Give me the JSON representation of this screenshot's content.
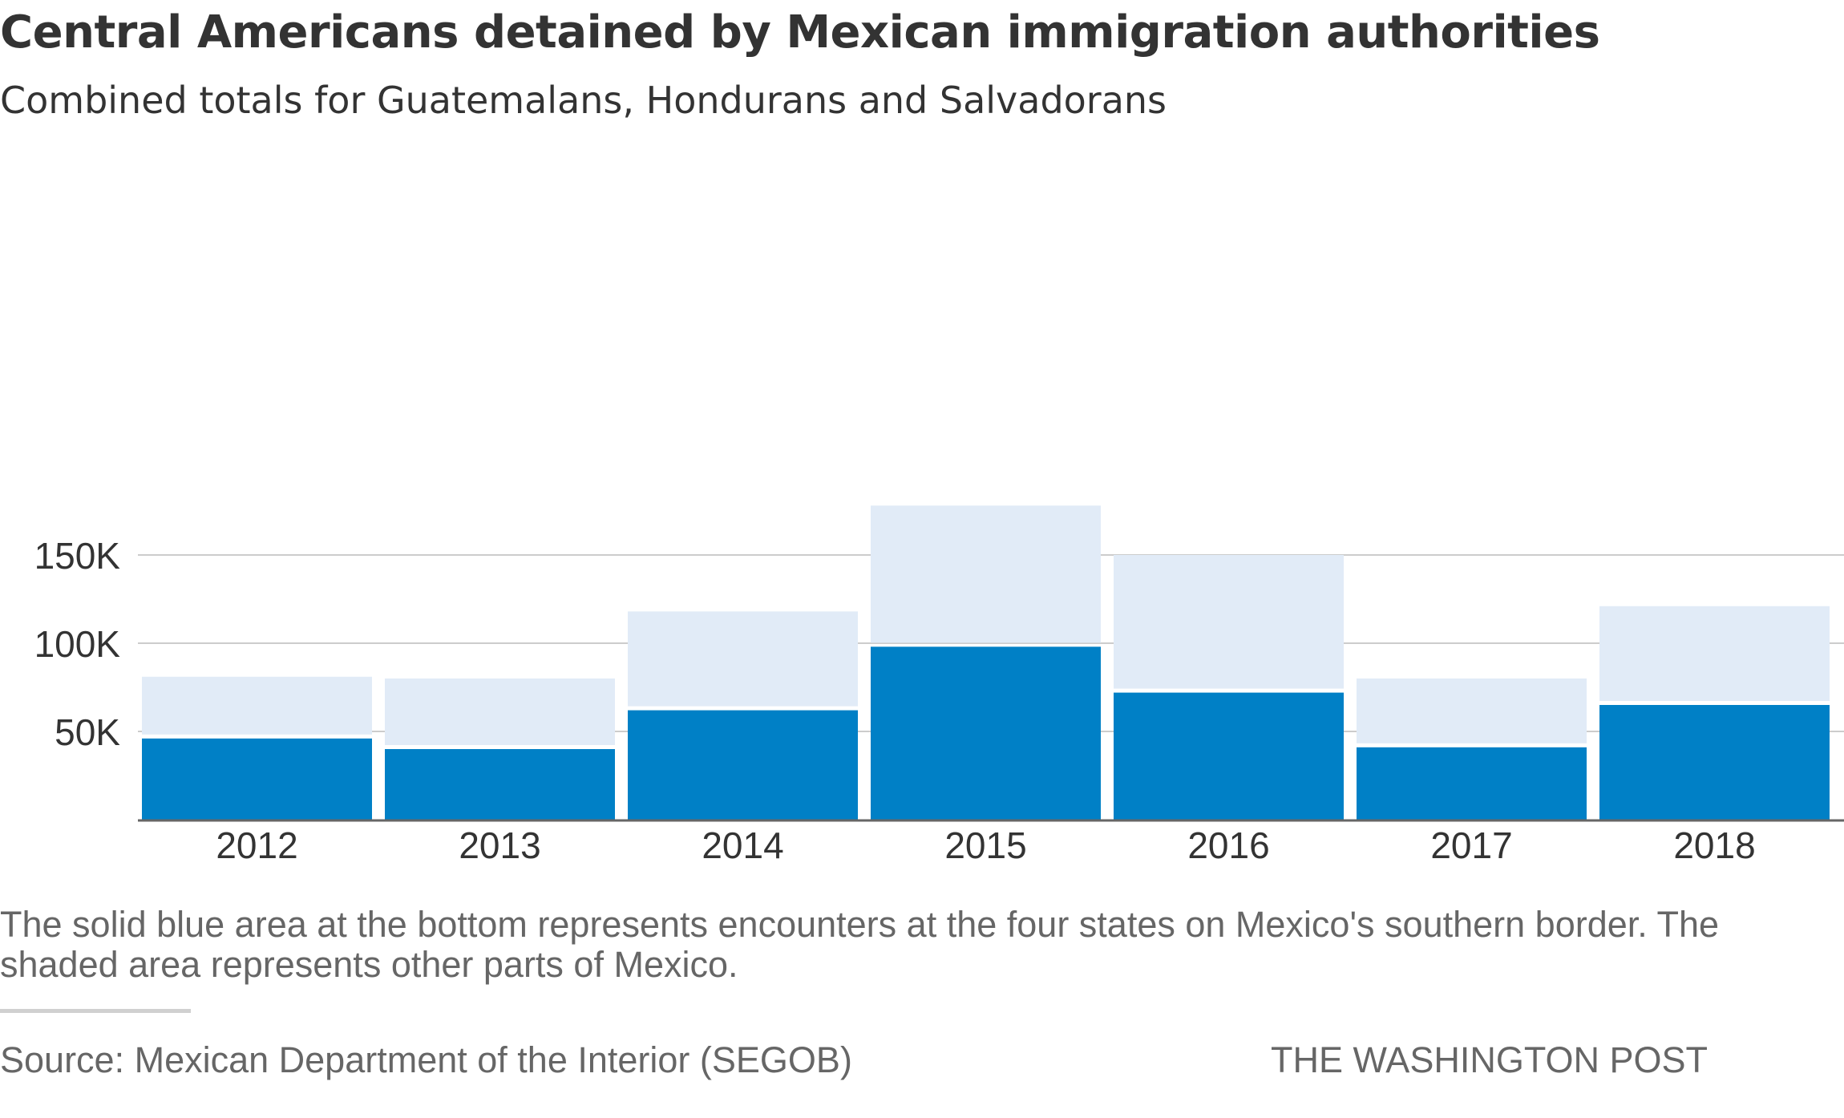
{
  "header": {
    "title": "Central Americans detained by Mexican immigration authorities",
    "subtitle": "Combined totals for Guatemalans, Hondurans and Salvadorans"
  },
  "footer": {
    "note": "The solid blue area at the bottom represents encounters at the four states on Mexico's southern border. The shaded area represents other parts of Mexico.",
    "source": "Source: Mexican Department of the Interior (SEGOB)",
    "credit": "THE WASHINGTON POST"
  },
  "colors": {
    "southern_border": "#0080c6",
    "other_parts": "#e1ebf7",
    "gridline": "#cccccc",
    "axis": "#666666",
    "text": "#333333"
  },
  "chart_data": {
    "type": "bar",
    "stacked": true,
    "title": "Central Americans detained by Mexican immigration authorities",
    "subtitle": "Combined totals for Guatemalans, Hondurans and Salvadorans",
    "xlabel": "",
    "ylabel": "",
    "categories": [
      "2012",
      "2013",
      "2014",
      "2015",
      "2016",
      "2017",
      "2018"
    ],
    "series": [
      {
        "values": [
          46000,
          40000,
          62000,
          98000,
          72000,
          41000,
          65000
        ]
      },
      {
        "values": [
          35000,
          40000,
          56000,
          80000,
          78000,
          39000,
          56000
        ]
      }
    ],
    "totals": [
      81000,
      80000,
      118000,
      178000,
      150000,
      80000,
      121000
    ],
    "ylim": [
      0,
      180000
    ],
    "yticks": [
      50000,
      100000,
      150000
    ],
    "ytick_labels": [
      "50K",
      "100K",
      "150K"
    ],
    "grid": true,
    "legend": "none"
  }
}
